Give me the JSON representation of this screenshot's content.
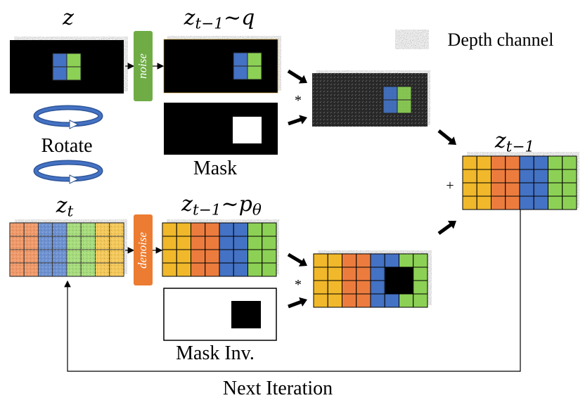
{
  "labels": {
    "z": "z",
    "z_q": "z_{t−1}~q",
    "z_t": "z_t",
    "z_p": "z_{t−1}~p_θ",
    "z_out": "z_{t−1}",
    "depth_legend": "Depth channel",
    "rotate": "Rotate",
    "mask": "Mask",
    "mask_inv": "Mask Inv.",
    "next_iteration": "Next Iteration",
    "noise": "noise",
    "denoise": "denoise",
    "mult": "*",
    "plus": "+"
  },
  "colors": {
    "yellow": "#f0b82a",
    "orange": "#ec7c3e",
    "blue": "#4472c4",
    "green": "#8cd155",
    "noise_block": "#6fac46",
    "denoise_block": "#ec7c31",
    "rotate_blue": "#4472c4"
  },
  "icons": {
    "rotate": "rotate-ring-icon",
    "depth": "depth-noise-swatch-icon"
  }
}
